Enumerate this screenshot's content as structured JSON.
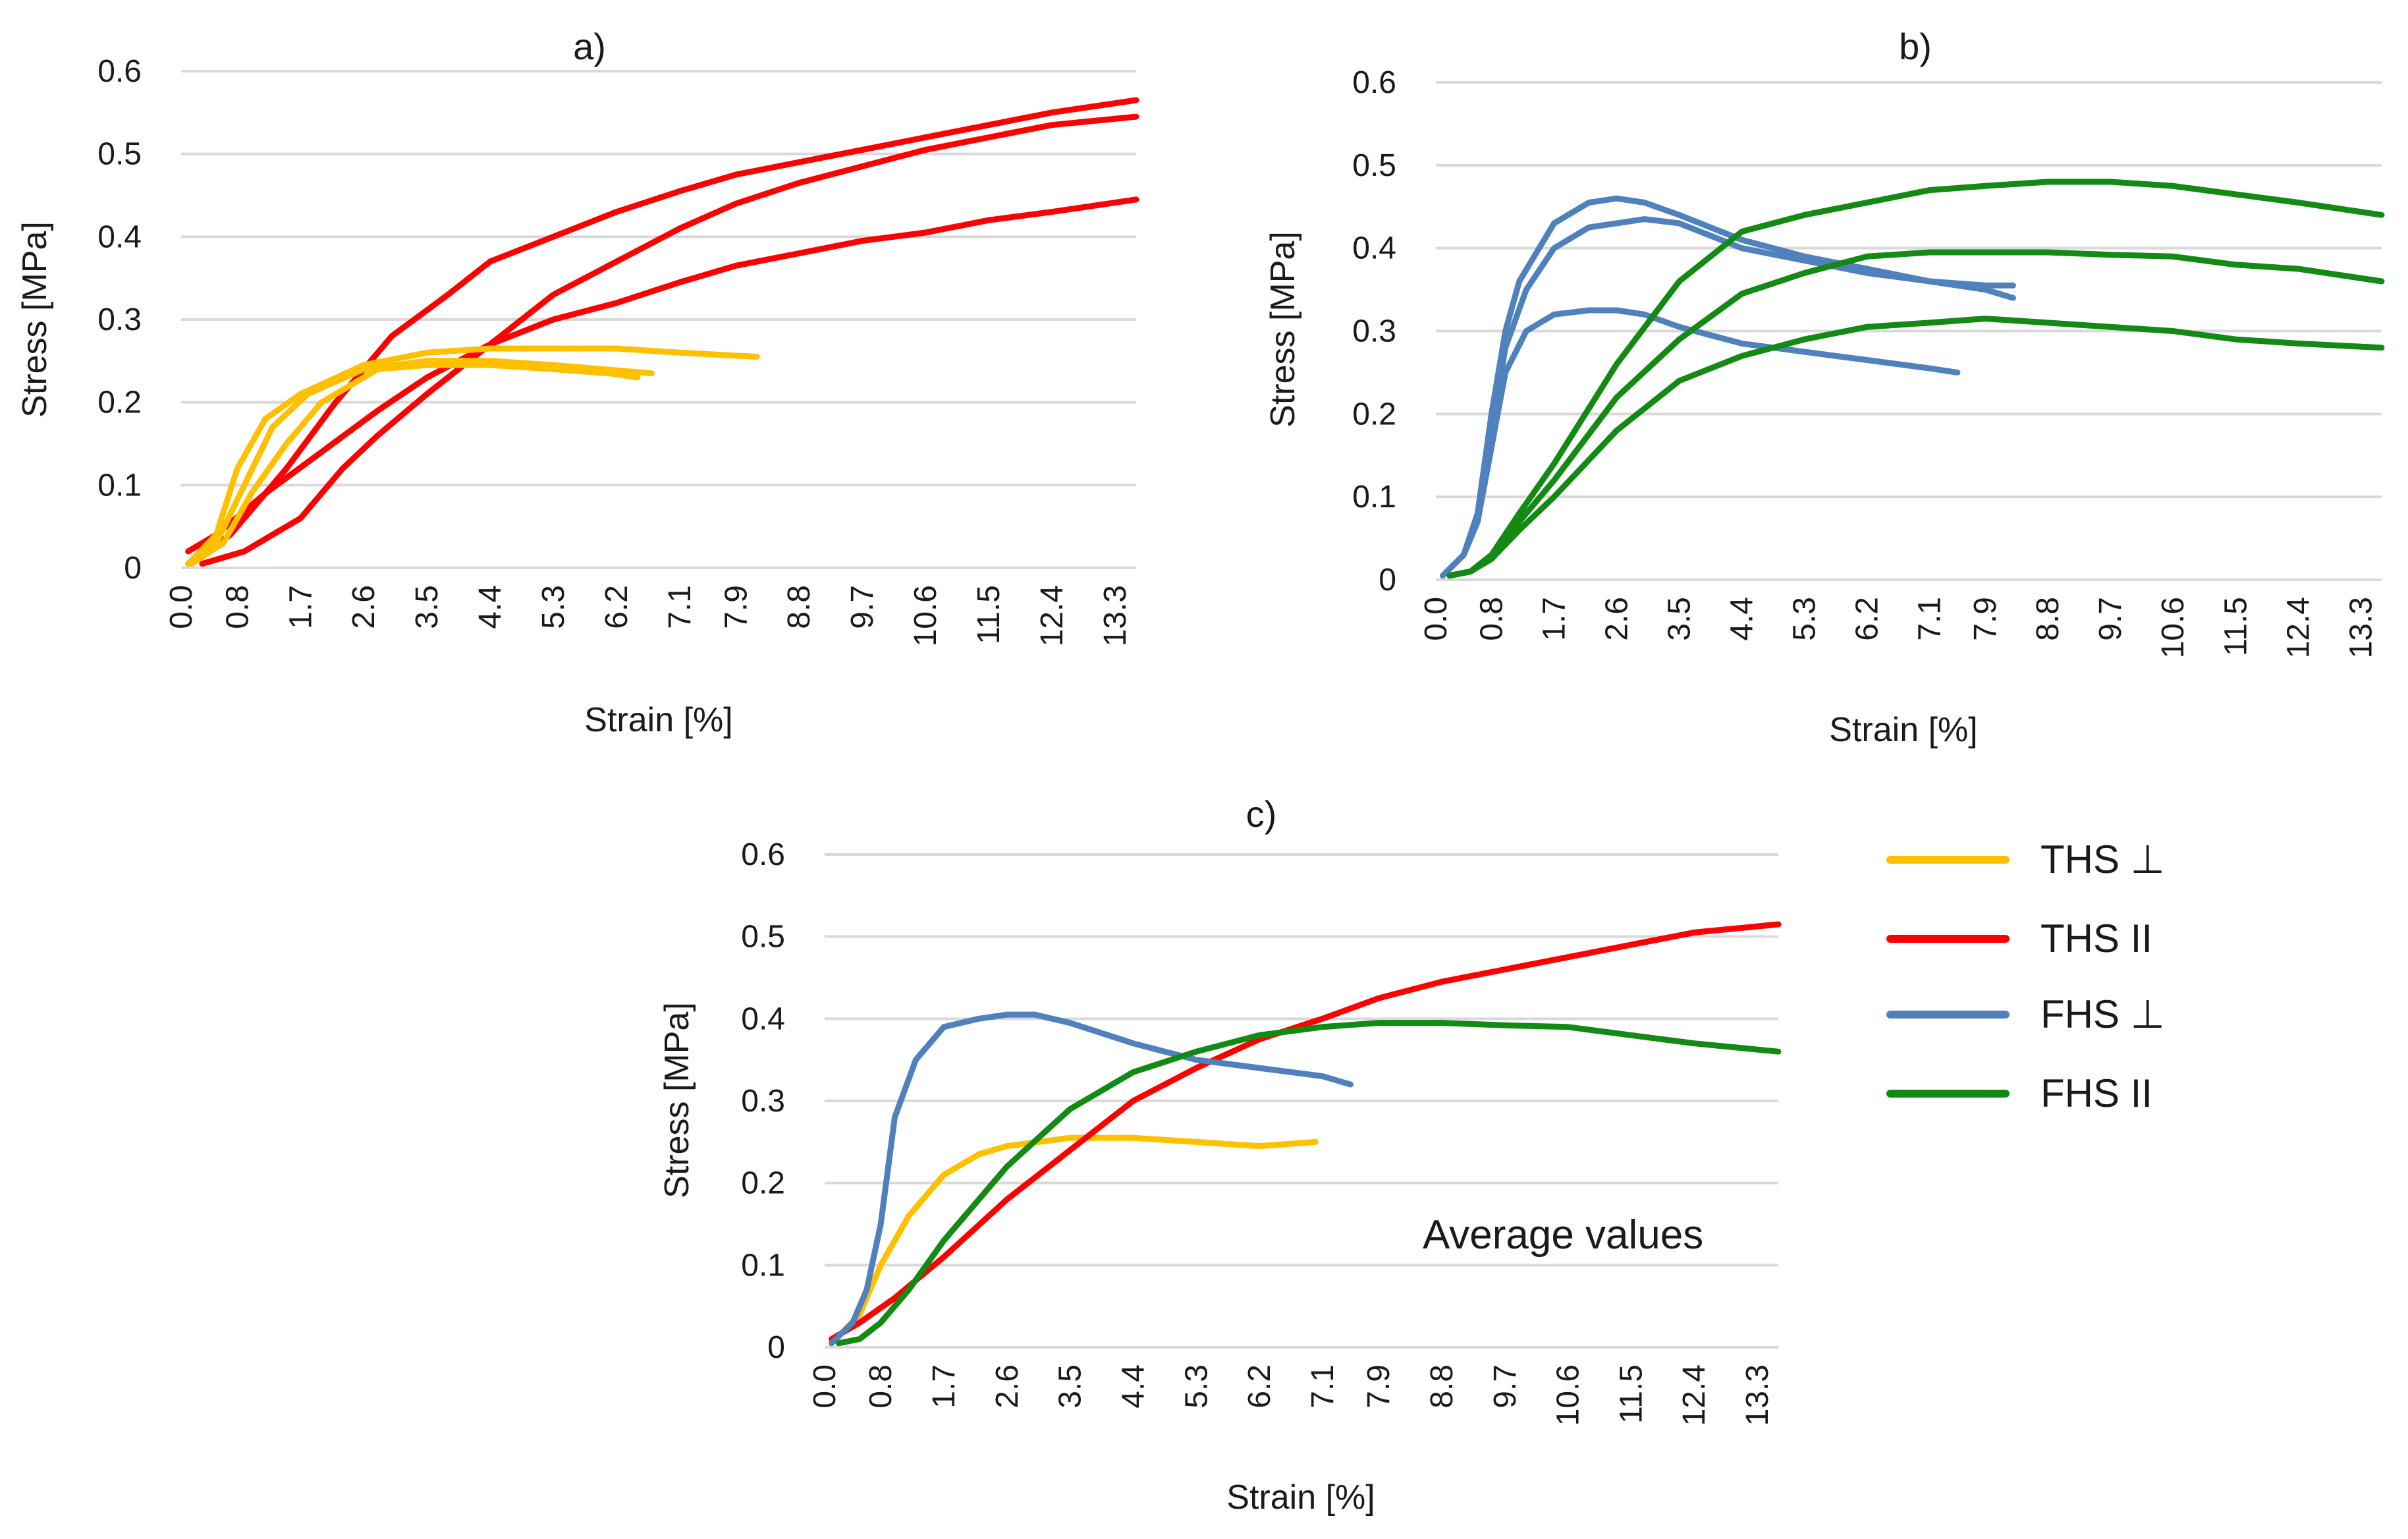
{
  "colors": {
    "ths_perp": "#FFC000",
    "ths_par": "#FF0000",
    "fhs_perp": "#4F81BD",
    "fhs_par": "#138A13",
    "grid": "#D9D9D9",
    "text": "#1a1a1a"
  },
  "legend": [
    {
      "label": "THS ⊥",
      "color": "#FFC000"
    },
    {
      "label": "THS II",
      "color": "#FF0000"
    },
    {
      "label": "FHS ⊥",
      "color": "#4F81BD"
    },
    {
      "label": "FHS II",
      "color": "#138A13"
    }
  ],
  "chart_data": [
    {
      "id": "a",
      "type": "line",
      "title": "a)",
      "xlabel": "Strain [%]",
      "ylabel": "Stress [MPa]",
      "xlim": [
        0,
        13.6
      ],
      "ylim": [
        0,
        0.6
      ],
      "xticks": [
        "0.0",
        "0.8",
        "1.7",
        "2.6",
        "3.5",
        "4.4",
        "5.3",
        "6.2",
        "7.1",
        "7.9",
        "8.8",
        "9.7",
        "10.6",
        "11.5",
        "12.4",
        "13.3"
      ],
      "yticks": [
        "0",
        "0.1",
        "0.2",
        "0.3",
        "0.4",
        "0.5",
        "0.6"
      ],
      "grid": true,
      "series": [
        {
          "name": "THS II 1",
          "color": "#FF0000",
          "x": [
            0.1,
            0.5,
            1.2,
            2.0,
            2.8,
            3.5,
            4.4,
            5.3,
            6.2,
            7.1,
            7.9,
            8.8,
            9.7,
            10.6,
            11.5,
            12.4,
            13.6
          ],
          "y": [
            0.02,
            0.04,
            0.09,
            0.14,
            0.19,
            0.23,
            0.27,
            0.3,
            0.32,
            0.345,
            0.365,
            0.38,
            0.395,
            0.405,
            0.42,
            0.43,
            0.445
          ]
        },
        {
          "name": "THS II 2",
          "color": "#FF0000",
          "x": [
            0.2,
            0.7,
            1.5,
            2.2,
            3.0,
            3.8,
            4.4,
            5.3,
            6.2,
            7.1,
            7.9,
            8.8,
            9.7,
            10.6,
            11.5,
            12.4,
            13.6
          ],
          "y": [
            0.01,
            0.04,
            0.12,
            0.2,
            0.28,
            0.33,
            0.37,
            0.4,
            0.43,
            0.455,
            0.475,
            0.49,
            0.505,
            0.52,
            0.535,
            0.55,
            0.565
          ]
        },
        {
          "name": "THS II 3",
          "color": "#FF0000",
          "x": [
            0.3,
            0.9,
            1.7,
            2.3,
            2.8,
            3.5,
            4.4,
            5.3,
            6.2,
            7.1,
            7.9,
            8.8,
            9.7,
            10.6,
            11.5,
            12.4,
            13.6
          ],
          "y": [
            0.005,
            0.02,
            0.06,
            0.12,
            0.16,
            0.21,
            0.27,
            0.33,
            0.37,
            0.41,
            0.44,
            0.465,
            0.485,
            0.505,
            0.52,
            0.535,
            0.545
          ]
        },
        {
          "name": "THS ⊥ 1",
          "color": "#FFC000",
          "x": [
            0.1,
            0.5,
            0.8,
            1.2,
            1.7,
            2.6,
            3.5,
            4.4,
            5.3,
            6.2,
            7.1,
            8.2
          ],
          "y": [
            0.005,
            0.04,
            0.12,
            0.18,
            0.21,
            0.245,
            0.26,
            0.265,
            0.265,
            0.265,
            0.26,
            0.255
          ]
        },
        {
          "name": "THS ⊥ 2",
          "color": "#FFC000",
          "x": [
            0.1,
            0.5,
            0.9,
            1.3,
            1.8,
            2.6,
            3.5,
            4.4,
            5.3,
            6.0,
            6.7
          ],
          "y": [
            0.005,
            0.03,
            0.1,
            0.17,
            0.21,
            0.24,
            0.25,
            0.25,
            0.245,
            0.24,
            0.235
          ]
        },
        {
          "name": "THS ⊥ 3",
          "color": "#FFC000",
          "x": [
            0.15,
            0.6,
            1.0,
            1.5,
            2.0,
            2.8,
            3.5,
            4.4,
            5.3,
            6.1,
            6.5
          ],
          "y": [
            0.005,
            0.03,
            0.09,
            0.15,
            0.2,
            0.24,
            0.245,
            0.245,
            0.24,
            0.235,
            0.23
          ]
        }
      ]
    },
    {
      "id": "b",
      "type": "line",
      "title": "b)",
      "xlabel": "Strain [%]",
      "ylabel": "Stress [MPa]",
      "xlim": [
        0,
        13.6
      ],
      "ylim": [
        0,
        0.6
      ],
      "xticks": [
        "0.0",
        "0.8",
        "1.7",
        "2.6",
        "3.5",
        "4.4",
        "5.3",
        "6.2",
        "7.1",
        "7.9",
        "8.8",
        "9.7",
        "10.6",
        "11.5",
        "12.4",
        "13.3"
      ],
      "yticks": [
        "0",
        "0.1",
        "0.2",
        "0.3",
        "0.4",
        "0.5",
        "0.6"
      ],
      "grid": true,
      "series": [
        {
          "name": "FHS ⊥ 1",
          "color": "#4F81BD",
          "x": [
            0.1,
            0.4,
            0.6,
            0.8,
            1.0,
            1.2,
            1.7,
            2.2,
            2.6,
            3.0,
            3.5,
            4.4,
            5.3,
            6.2,
            7.1,
            7.9,
            8.3
          ],
          "y": [
            0.005,
            0.03,
            0.08,
            0.2,
            0.3,
            0.36,
            0.43,
            0.455,
            0.46,
            0.455,
            0.44,
            0.41,
            0.39,
            0.375,
            0.36,
            0.35,
            0.34
          ]
        },
        {
          "name": "FHS ⊥ 2",
          "color": "#4F81BD",
          "x": [
            0.1,
            0.4,
            0.6,
            0.8,
            1.0,
            1.3,
            1.7,
            2.2,
            2.6,
            3.0,
            3.5,
            4.4,
            5.3,
            6.2,
            7.1,
            7.9,
            8.3
          ],
          "y": [
            0.005,
            0.03,
            0.07,
            0.18,
            0.28,
            0.35,
            0.4,
            0.425,
            0.43,
            0.435,
            0.43,
            0.4,
            0.385,
            0.37,
            0.36,
            0.355,
            0.355
          ]
        },
        {
          "name": "FHS ⊥ 3",
          "color": "#4F81BD",
          "x": [
            0.1,
            0.4,
            0.6,
            0.8,
            1.0,
            1.3,
            1.7,
            2.2,
            2.6,
            3.0,
            3.5,
            4.4,
            5.3,
            6.2,
            7.1,
            7.5
          ],
          "y": [
            0.005,
            0.03,
            0.07,
            0.16,
            0.25,
            0.3,
            0.32,
            0.325,
            0.325,
            0.32,
            0.305,
            0.285,
            0.275,
            0.265,
            0.255,
            0.25
          ]
        },
        {
          "name": "FHS II 1",
          "color": "#138A13",
          "x": [
            0.2,
            0.5,
            0.8,
            1.2,
            1.7,
            2.6,
            3.5,
            4.4,
            5.3,
            6.2,
            7.1,
            7.9,
            8.8,
            9.7,
            10.6,
            11.5,
            12.4,
            13.6
          ],
          "y": [
            0.005,
            0.01,
            0.03,
            0.08,
            0.14,
            0.26,
            0.36,
            0.42,
            0.44,
            0.455,
            0.47,
            0.475,
            0.48,
            0.48,
            0.475,
            0.465,
            0.455,
            0.44
          ]
        },
        {
          "name": "FHS II 2",
          "color": "#138A13",
          "x": [
            0.2,
            0.5,
            0.8,
            1.2,
            1.7,
            2.6,
            3.5,
            4.4,
            5.3,
            6.2,
            7.1,
            7.9,
            8.8,
            9.7,
            10.6,
            11.5,
            12.4,
            13.6
          ],
          "y": [
            0.005,
            0.01,
            0.03,
            0.07,
            0.12,
            0.22,
            0.29,
            0.345,
            0.37,
            0.39,
            0.395,
            0.395,
            0.395,
            0.392,
            0.39,
            0.38,
            0.375,
            0.36
          ]
        },
        {
          "name": "FHS II 3",
          "color": "#138A13",
          "x": [
            0.2,
            0.5,
            0.8,
            1.2,
            1.7,
            2.6,
            3.5,
            4.4,
            5.3,
            6.2,
            7.1,
            7.9,
            8.8,
            9.7,
            10.6,
            11.5,
            12.4,
            13.6
          ],
          "y": [
            0.005,
            0.01,
            0.025,
            0.06,
            0.1,
            0.18,
            0.24,
            0.27,
            0.29,
            0.305,
            0.31,
            0.315,
            0.31,
            0.305,
            0.3,
            0.29,
            0.285,
            0.28
          ]
        }
      ]
    },
    {
      "id": "c",
      "type": "line",
      "title": "c)",
      "annotation": "Average values",
      "xlabel": "Strain [%]",
      "ylabel": "Stress [MPa]",
      "xlim": [
        0,
        13.6
      ],
      "ylim": [
        0,
        0.6
      ],
      "xticks": [
        "0.0",
        "0.8",
        "1.7",
        "2.6",
        "3.5",
        "4.4",
        "5.3",
        "6.2",
        "7.1",
        "7.9",
        "8.8",
        "9.7",
        "10.6",
        "11.5",
        "12.4",
        "13.3"
      ],
      "yticks": [
        "0",
        "0.1",
        "0.2",
        "0.3",
        "0.4",
        "0.5",
        "0.6"
      ],
      "grid": true,
      "series": [
        {
          "name": "THS ⊥",
          "color": "#FFC000",
          "x": [
            0.1,
            0.5,
            0.8,
            1.2,
            1.7,
            2.2,
            2.6,
            3.5,
            4.4,
            5.3,
            6.2,
            7.0
          ],
          "y": [
            0.005,
            0.04,
            0.1,
            0.16,
            0.21,
            0.235,
            0.245,
            0.255,
            0.255,
            0.25,
            0.245,
            0.25
          ]
        },
        {
          "name": "THS II",
          "color": "#FF0000",
          "x": [
            0.1,
            0.5,
            1.0,
            1.7,
            2.6,
            3.5,
            4.4,
            5.3,
            6.2,
            7.1,
            7.9,
            8.8,
            9.7,
            10.6,
            11.5,
            12.4,
            13.6
          ],
          "y": [
            0.01,
            0.03,
            0.06,
            0.11,
            0.18,
            0.24,
            0.3,
            0.34,
            0.375,
            0.4,
            0.425,
            0.445,
            0.46,
            0.475,
            0.49,
            0.505,
            0.515
          ]
        },
        {
          "name": "FHS ⊥",
          "color": "#4F81BD",
          "x": [
            0.1,
            0.4,
            0.6,
            0.8,
            1.0,
            1.3,
            1.7,
            2.2,
            2.6,
            3.0,
            3.5,
            4.4,
            5.3,
            6.2,
            7.1,
            7.5
          ],
          "y": [
            0.005,
            0.03,
            0.07,
            0.15,
            0.28,
            0.35,
            0.39,
            0.4,
            0.405,
            0.405,
            0.395,
            0.37,
            0.35,
            0.34,
            0.33,
            0.32
          ]
        },
        {
          "name": "FHS II",
          "color": "#138A13",
          "x": [
            0.2,
            0.5,
            0.8,
            1.2,
            1.7,
            2.6,
            3.5,
            4.4,
            5.3,
            6.2,
            7.1,
            7.9,
            8.8,
            9.7,
            10.6,
            11.5,
            12.4,
            13.6
          ],
          "y": [
            0.005,
            0.01,
            0.03,
            0.07,
            0.13,
            0.22,
            0.29,
            0.335,
            0.36,
            0.38,
            0.39,
            0.395,
            0.395,
            0.392,
            0.39,
            0.38,
            0.37,
            0.36
          ]
        }
      ]
    }
  ]
}
